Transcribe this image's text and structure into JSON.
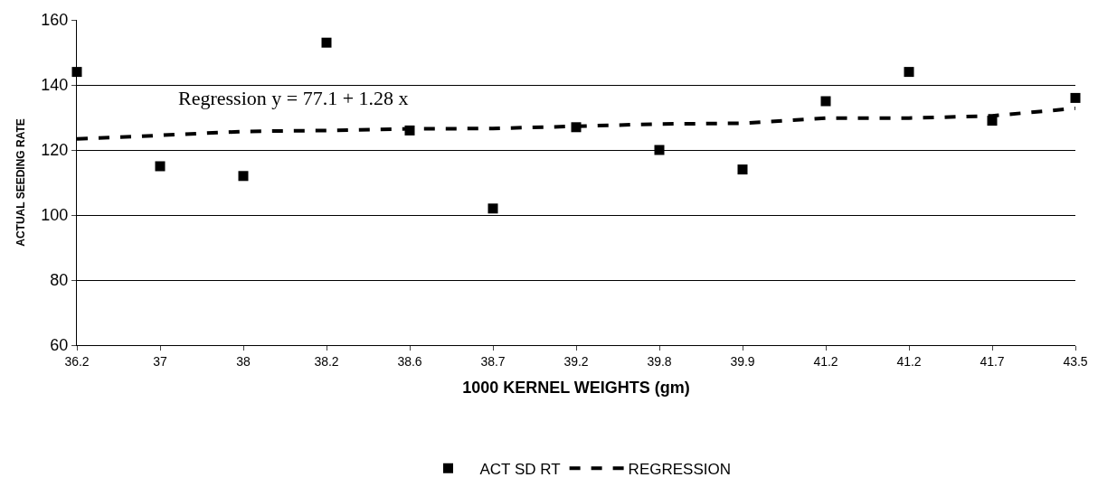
{
  "chart_data": {
    "type": "scatter",
    "xlabel": "1000 KERNEL WEIGHTS (gm)",
    "ylabel": "ACTUAL SEEDING RATE",
    "categories": [
      "36.2",
      "37",
      "38",
      "38.2",
      "38.6",
      "38.7",
      "39.2",
      "39.8",
      "39.9",
      "41.2",
      "41.2",
      "41.7",
      "43.5"
    ],
    "series": [
      {
        "name": "ACT SD RT",
        "color": "#000000",
        "marker": "square",
        "values": [
          144,
          115,
          112,
          153,
          126,
          102,
          127,
          120,
          114,
          135,
          144,
          129,
          136
        ]
      },
      {
        "name": "REGRESSION",
        "color": "#000000",
        "type": "line",
        "marker": "none",
        "line_style": "dashed",
        "values": [
          123.4,
          124.5,
          125.7,
          126.0,
          126.5,
          126.6,
          127.3,
          128.0,
          128.2,
          129.8,
          129.8,
          130.5,
          132.8
        ]
      }
    ],
    "annotations": [
      "Regression y = 77.1 + 1.28 x"
    ],
    "ylim": [
      60,
      160
    ],
    "yticks": [
      60,
      80,
      100,
      120,
      140,
      160
    ],
    "grid": "y",
    "legend": "bottom"
  }
}
